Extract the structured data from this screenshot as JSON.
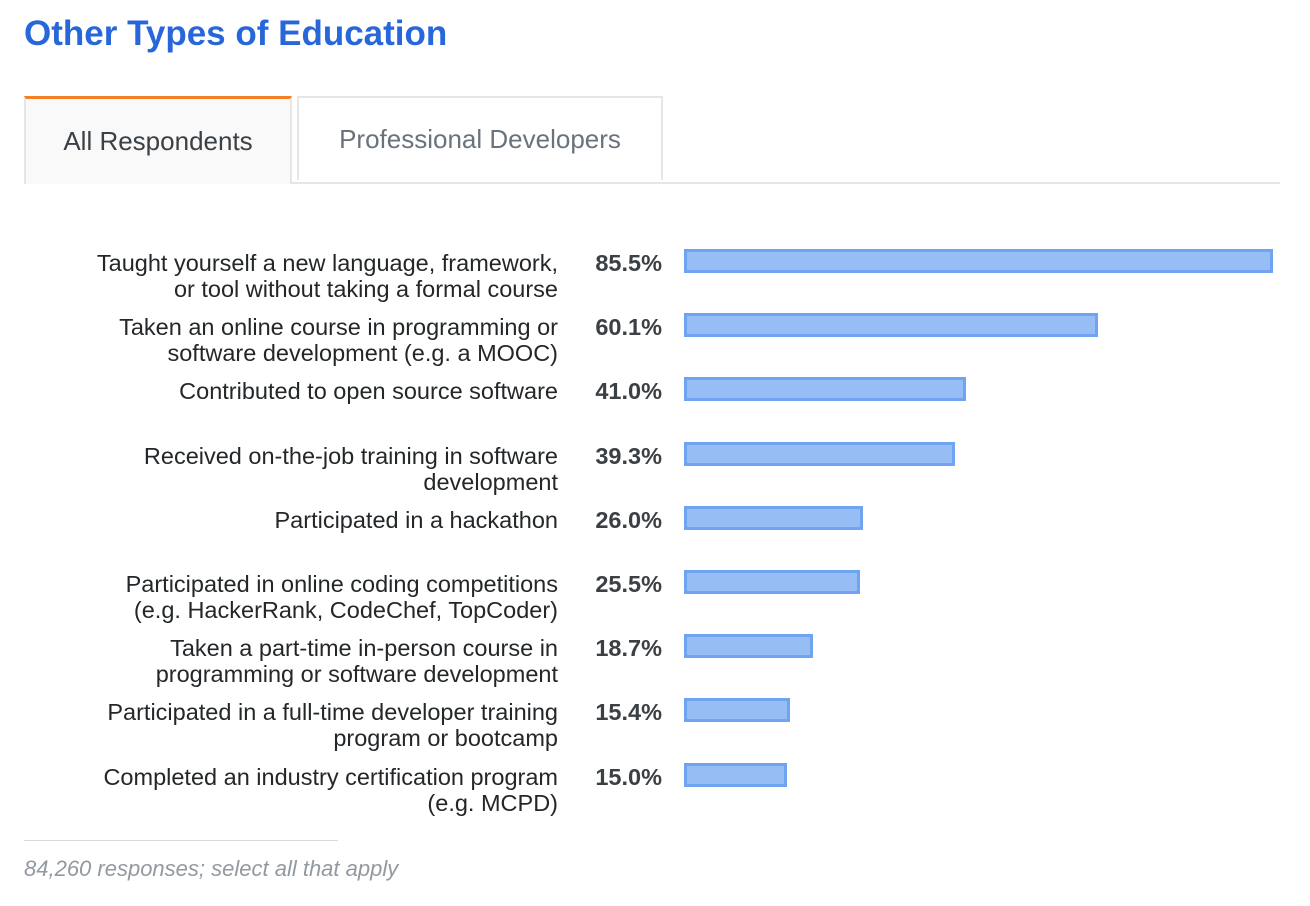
{
  "title": "Other Types of Education",
  "tabs": [
    {
      "label": "All Respondents",
      "active": true
    },
    {
      "label": "Professional Developers",
      "active": false
    }
  ],
  "colors": {
    "title": "#2767d9",
    "active_tab_accent": "#f48024",
    "bar_fill": "#97bdf5",
    "bar_border": "#6ea4f0"
  },
  "chart_data": {
    "type": "bar",
    "orientation": "horizontal",
    "xlim": [
      0,
      85.5
    ],
    "unit": "%",
    "categories": [
      "Taught yourself a new language, framework, or tool without taking a formal course",
      "Taken an online course in programming or software development (e.g. a MOOC)",
      "Contributed to open source software",
      "Received on-the-job training in software development",
      "Participated in a hackathon",
      "Participated in online coding competitions (e.g. HackerRank, CodeChef, TopCoder)",
      "Taken a part-time in-person course in programming or software development",
      "Participated in a full-time developer training program or bootcamp",
      "Completed an industry certification program (e.g. MCPD)"
    ],
    "labels_display": [
      [
        "Taught yourself a new language, framework,",
        "or tool without taking a formal course"
      ],
      [
        "Taken an online course in programming or",
        "software development (e.g. a MOOC)"
      ],
      [
        "Contributed to open source software"
      ],
      [
        "Received on-the-job training in software",
        "development"
      ],
      [
        "Participated in a hackathon"
      ],
      [
        "Participated in online coding competitions",
        "(e.g. HackerRank, CodeChef, TopCoder)"
      ],
      [
        "Taken a part-time in-person course in",
        "programming or software development"
      ],
      [
        "Participated in a full-time developer training",
        "program or bootcamp"
      ],
      [
        "Completed an industry certification program",
        "(e.g. MCPD)"
      ]
    ],
    "values": [
      85.5,
      60.1,
      41.0,
      39.3,
      26.0,
      25.5,
      18.7,
      15.4,
      15.0
    ],
    "value_labels": [
      "85.5%",
      "60.1%",
      "41.0%",
      "39.3%",
      "26.0%",
      "25.5%",
      "18.7%",
      "15.4%",
      "15.0%"
    ]
  },
  "footnote": "84,260 responses; select all that apply"
}
